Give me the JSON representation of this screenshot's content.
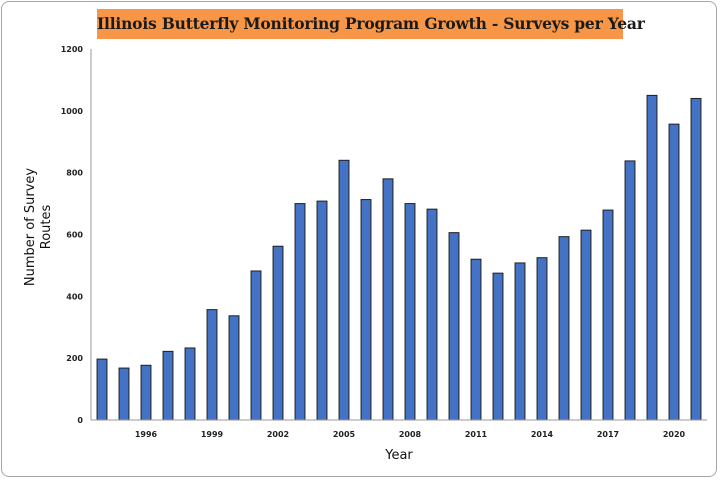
{
  "chart_data": {
    "type": "bar",
    "title": "Illinois Butterfly Monitoring Program Growth - Surveys per Year",
    "xlabel": "Year",
    "ylabel_line1": "Number of  Survey",
    "ylabel_line2": "Routes",
    "ylim": [
      0,
      1200
    ],
    "yticks": [
      0,
      200,
      400,
      600,
      800,
      1000,
      1200
    ],
    "grid": false,
    "legend": "none",
    "bar_color": "#4472c4",
    "bar_edge_color": "#1f1f1f",
    "x": [
      1994,
      1995,
      1996,
      1997,
      1998,
      1999,
      2000,
      2001,
      2002,
      2003,
      2004,
      2005,
      2006,
      2007,
      2008,
      2009,
      2010,
      2011,
      2012,
      2013,
      2014,
      2015,
      2016,
      2017,
      2018,
      2019,
      2020,
      2021
    ],
    "xtick_labels": [
      "1996",
      "1999",
      "2002",
      "2005",
      "2008",
      "2011",
      "2014",
      "2017",
      "2020"
    ],
    "values": [
      197,
      168,
      177,
      222,
      233,
      357,
      337,
      482,
      562,
      700,
      708,
      840,
      713,
      780,
      700,
      682,
      606,
      520,
      475,
      508,
      525,
      593,
      614,
      679,
      838,
      1050,
      957,
      1040
    ]
  },
  "colors": {
    "title_background": "#f79646"
  }
}
